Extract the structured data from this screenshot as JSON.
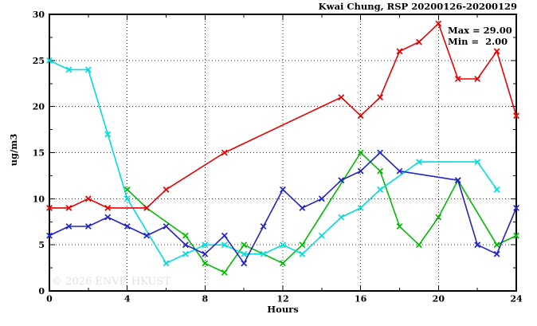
{
  "title": "Kwai Chung, RSP 20200126-20200129",
  "legend": {
    "max_label": "Max = 29.00",
    "min_label": "Min =  2.00"
  },
  "watermark": "© 2026 ENVF, HKUST",
  "chart_data": {
    "type": "line",
    "title": "Kwai Chung, RSP 20200126-20200129",
    "xlabel": "Hours",
    "ylabel": "ug/m3",
    "xlim": [
      0,
      24
    ],
    "ylim": [
      0,
      30
    ],
    "x_major_ticks": [
      0,
      4,
      8,
      12,
      16,
      20,
      24
    ],
    "y_major_ticks": [
      0,
      5,
      10,
      15,
      20,
      25,
      30
    ],
    "x_minor_step": 2,
    "y_minor_step": 2.5,
    "grid": "dotted-at-major",
    "legend_position": "top-right-inside",
    "marker": "x-cross",
    "max_value": 29.0,
    "min_value": 2.0,
    "x": [
      0,
      1,
      2,
      3,
      4,
      5,
      6,
      7,
      8,
      9,
      10,
      11,
      12,
      13,
      14,
      15,
      16,
      17,
      18,
      19,
      20,
      21,
      22,
      23,
      24
    ],
    "series": [
      {
        "name": "green",
        "color": "#00bb00",
        "values": [
          null,
          null,
          null,
          null,
          11,
          9,
          null,
          6,
          3,
          2,
          5,
          null,
          3,
          5,
          null,
          null,
          15,
          13,
          7,
          5,
          8,
          12,
          null,
          5,
          6
        ]
      },
      {
        "name": "cyan",
        "color": "#00dddd",
        "values": [
          25,
          24,
          24,
          17,
          10,
          null,
          3,
          4,
          5,
          5,
          4,
          4,
          5,
          4,
          6,
          8,
          9,
          11,
          null,
          14,
          null,
          null,
          14,
          11,
          null
        ]
      },
      {
        "name": "blue",
        "color": "#2222cc",
        "values": [
          6,
          7,
          7,
          8,
          7,
          6,
          7,
          5,
          4,
          6,
          3,
          7,
          11,
          9,
          10,
          12,
          13,
          15,
          13,
          null,
          null,
          12,
          5,
          4,
          9
        ]
      },
      {
        "name": "red",
        "color": "#e80000",
        "values": [
          9,
          9,
          10,
          9,
          null,
          9,
          11,
          null,
          null,
          15,
          null,
          null,
          null,
          null,
          null,
          21,
          19,
          21,
          26,
          27,
          29,
          23,
          23,
          26,
          19
        ]
      }
    ]
  },
  "colors": {
    "axis": "#000000",
    "grid": "#000000",
    "background": "#ffffff",
    "watermark": "#e2e2e2"
  }
}
